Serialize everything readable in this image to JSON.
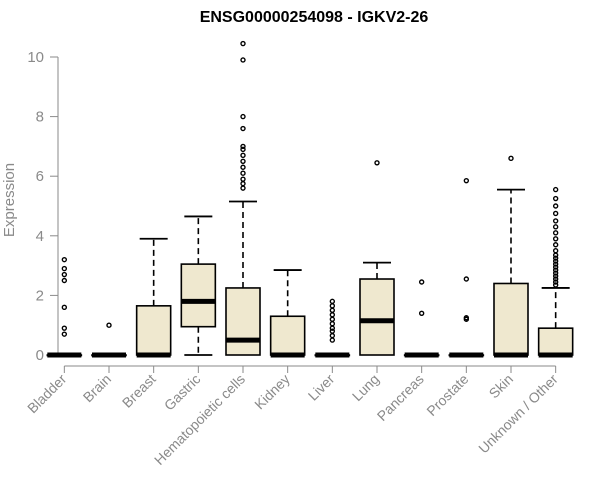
{
  "chart_data": {
    "type": "boxplot",
    "title": "ENSG00000254098 - IGKV2-26",
    "xlabel": "",
    "ylabel": "Expression",
    "ylim": [
      0,
      10.5
    ],
    "yticks": [
      0,
      2,
      4,
      6,
      8,
      10
    ],
    "categories": [
      "Bladder",
      "Brain",
      "Breast",
      "Gastric",
      "Hematopoietic cells",
      "Kidney",
      "Liver",
      "Lung",
      "Pancreas",
      "Prostate",
      "Skin",
      "Unknown / Other"
    ],
    "boxes": [
      {
        "name": "Bladder",
        "q1": 0,
        "median": 0,
        "q3": 0,
        "whisker_low": 0,
        "whisker_high": 0,
        "outliers": [
          0.7,
          0.9,
          1.6,
          2.5,
          2.7,
          2.9,
          3.2
        ]
      },
      {
        "name": "Brain",
        "q1": 0,
        "median": 0,
        "q3": 0,
        "whisker_low": 0,
        "whisker_high": 0,
        "outliers": [
          1.0
        ]
      },
      {
        "name": "Breast",
        "q1": 0,
        "median": 0,
        "q3": 1.65,
        "whisker_low": 0,
        "whisker_high": 3.9,
        "outliers": []
      },
      {
        "name": "Gastric",
        "q1": 0.95,
        "median": 1.8,
        "q3": 3.05,
        "whisker_low": 0,
        "whisker_high": 4.65,
        "outliers": []
      },
      {
        "name": "Hematopoietic cells",
        "q1": 0,
        "median": 0.5,
        "q3": 2.25,
        "whisker_low": 0,
        "whisker_high": 5.15,
        "outliers": [
          5.6,
          5.75,
          5.9,
          6.1,
          6.3,
          6.5,
          6.7,
          6.9,
          7.0,
          7.6,
          8.0,
          9.9,
          10.45
        ]
      },
      {
        "name": "Kidney",
        "q1": 0,
        "median": 0,
        "q3": 1.3,
        "whisker_low": 0,
        "whisker_high": 2.85,
        "outliers": []
      },
      {
        "name": "Liver",
        "q1": 0,
        "median": 0,
        "q3": 0,
        "whisker_low": 0,
        "whisker_high": 0,
        "outliers": [
          0.5,
          0.65,
          0.8,
          0.9,
          1.05,
          1.2,
          1.35,
          1.5,
          1.65,
          1.8
        ]
      },
      {
        "name": "Lung",
        "q1": 0,
        "median": 1.15,
        "q3": 2.55,
        "whisker_low": 0,
        "whisker_high": 3.1,
        "outliers": [
          6.45
        ]
      },
      {
        "name": "Pancreas",
        "q1": 0,
        "median": 0,
        "q3": 0,
        "whisker_low": 0,
        "whisker_high": 0,
        "outliers": [
          1.4,
          2.45
        ]
      },
      {
        "name": "Prostate",
        "q1": 0,
        "median": 0,
        "q3": 0,
        "whisker_low": 0,
        "whisker_high": 0,
        "outliers": [
          1.2,
          1.25,
          2.55,
          5.85
        ]
      },
      {
        "name": "Skin",
        "q1": 0,
        "median": 0,
        "q3": 2.4,
        "whisker_low": 0,
        "whisker_high": 5.55,
        "outliers": [
          6.6
        ]
      },
      {
        "name": "Unknown / Other",
        "q1": 0,
        "median": 0,
        "q3": 0.9,
        "whisker_low": 0,
        "whisker_high": 2.25,
        "outliers": [
          2.35,
          2.45,
          2.55,
          2.65,
          2.75,
          2.85,
          2.95,
          3.05,
          3.15,
          3.25,
          3.35,
          3.5,
          3.7,
          3.9,
          4.1,
          4.3,
          4.5,
          4.75,
          5.0,
          5.25,
          5.55
        ]
      }
    ],
    "colors": {
      "box_fill": "#efe8cf",
      "box_stroke": "#000000",
      "axis": "#8a8a8a",
      "text": "#8a8a8a"
    },
    "grid": false,
    "legend": "none"
  }
}
